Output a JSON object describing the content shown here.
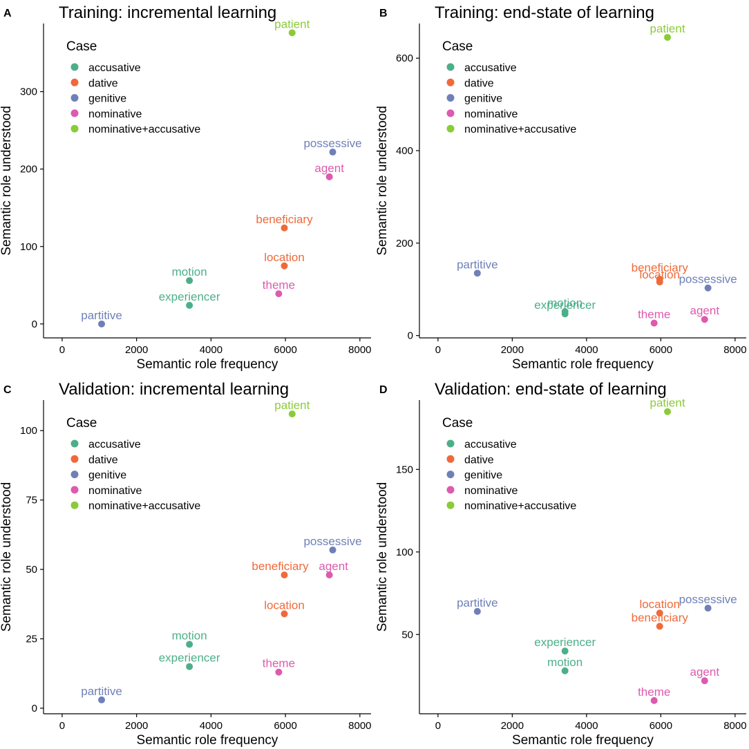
{
  "colors": {
    "accusative": "#4daf8a",
    "dative": "#ef6a3a",
    "genitive": "#6f80b8",
    "nominative": "#dd5aae",
    "nominative+accusative": "#8bcb38"
  },
  "legend": {
    "title": "Case",
    "entries": [
      "accusative",
      "dative",
      "genitive",
      "nominative",
      "nominative+accusative"
    ]
  },
  "chart_data": [
    {
      "type": "scatter",
      "tag": "A",
      "title": "Training: incremental learning",
      "xlabel": "Semantic role frequency",
      "ylabel": "Semantic role understood",
      "xlim": [
        -500,
        8300
      ],
      "ylim": [
        -18,
        388
      ],
      "xticks": [
        0,
        2000,
        4000,
        6000,
        8000
      ],
      "yticks": [
        0,
        100,
        200,
        300
      ],
      "points": [
        {
          "label": "patient",
          "case": "nominative+accusative",
          "x": 6180,
          "y": 376
        },
        {
          "label": "possessive",
          "case": "genitive",
          "x": 7270,
          "y": 222
        },
        {
          "label": "agent",
          "case": "nominative",
          "x": 7180,
          "y": 190
        },
        {
          "label": "beneficiary",
          "case": "dative",
          "x": 5970,
          "y": 124
        },
        {
          "label": "location",
          "case": "dative",
          "x": 5970,
          "y": 75
        },
        {
          "label": "motion",
          "case": "accusative",
          "x": 3420,
          "y": 56
        },
        {
          "label": "theme",
          "case": "nominative",
          "x": 5820,
          "y": 39
        },
        {
          "label": "experiencer",
          "case": "accusative",
          "x": 3420,
          "y": 24
        },
        {
          "label": "partitive",
          "case": "genitive",
          "x": 1060,
          "y": 0
        }
      ]
    },
    {
      "type": "scatter",
      "tag": "B",
      "title": "Training: end-state of learning",
      "xlabel": "Semantic role frequency",
      "ylabel": "Semantic role understood",
      "xlim": [
        -500,
        8300
      ],
      "ylim": [
        -5,
        675
      ],
      "xticks": [
        0,
        2000,
        4000,
        6000,
        8000
      ],
      "yticks": [
        0,
        200,
        400,
        600
      ],
      "points": [
        {
          "label": "patient",
          "case": "nominative+accusative",
          "x": 6180,
          "y": 645
        },
        {
          "label": "partitive",
          "case": "genitive",
          "x": 1060,
          "y": 135
        },
        {
          "label": "beneficiary",
          "case": "dative",
          "x": 5970,
          "y": 122
        },
        {
          "label": "location",
          "case": "dative",
          "x": 5970,
          "y": 116
        },
        {
          "label": "possessive",
          "case": "genitive",
          "x": 7270,
          "y": 103
        },
        {
          "label": "motion",
          "case": "accusative",
          "x": 3420,
          "y": 52
        },
        {
          "label": "experiencer",
          "case": "accusative",
          "x": 3420,
          "y": 47
        },
        {
          "label": "agent",
          "case": "nominative",
          "x": 7180,
          "y": 35
        },
        {
          "label": "theme",
          "case": "nominative",
          "x": 5820,
          "y": 27
        }
      ]
    },
    {
      "type": "scatter",
      "tag": "C",
      "title": "Validation: incremental learning",
      "xlabel": "Semantic role frequency",
      "ylabel": "Semantic role understood",
      "xlim": [
        -500,
        8300
      ],
      "ylim": [
        -2,
        111
      ],
      "xticks": [
        0,
        2000,
        4000,
        6000,
        8000
      ],
      "yticks": [
        0,
        25,
        50,
        75,
        100
      ],
      "points": [
        {
          "label": "patient",
          "case": "nominative+accusative",
          "x": 6180,
          "y": 106
        },
        {
          "label": "possessive",
          "case": "genitive",
          "x": 7270,
          "y": 57
        },
        {
          "label": "beneficiary",
          "case": "dative",
          "x": 5970,
          "y": 48
        },
        {
          "label": "agent",
          "case": "nominative",
          "x": 7180,
          "y": 48
        },
        {
          "label": "location",
          "case": "dative",
          "x": 5970,
          "y": 34
        },
        {
          "label": "motion",
          "case": "accusative",
          "x": 3420,
          "y": 23
        },
        {
          "label": "experiencer",
          "case": "accusative",
          "x": 3420,
          "y": 15
        },
        {
          "label": "theme",
          "case": "nominative",
          "x": 5820,
          "y": 13
        },
        {
          "label": "partitive",
          "case": "genitive",
          "x": 1060,
          "y": 3
        }
      ]
    },
    {
      "type": "scatter",
      "tag": "D",
      "title": "Validation: end-state of learning",
      "xlabel": "Semantic role frequency",
      "ylabel": "Semantic role understood",
      "xlim": [
        -500,
        8300
      ],
      "ylim": [
        2,
        192
      ],
      "xticks": [
        0,
        2000,
        4000,
        6000,
        8000
      ],
      "yticks": [
        50,
        100,
        150
      ],
      "points": [
        {
          "label": "patient",
          "case": "nominative+accusative",
          "x": 6180,
          "y": 185
        },
        {
          "label": "possessive",
          "case": "genitive",
          "x": 7270,
          "y": 66
        },
        {
          "label": "partitive",
          "case": "genitive",
          "x": 1060,
          "y": 64
        },
        {
          "label": "location",
          "case": "dative",
          "x": 5970,
          "y": 63
        },
        {
          "label": "beneficiary",
          "case": "dative",
          "x": 5970,
          "y": 55
        },
        {
          "label": "experiencer",
          "case": "accusative",
          "x": 3420,
          "y": 40
        },
        {
          "label": "motion",
          "case": "accusative",
          "x": 3420,
          "y": 28
        },
        {
          "label": "agent",
          "case": "nominative",
          "x": 7180,
          "y": 22
        },
        {
          "label": "theme",
          "case": "nominative",
          "x": 5820,
          "y": 10
        }
      ]
    }
  ]
}
